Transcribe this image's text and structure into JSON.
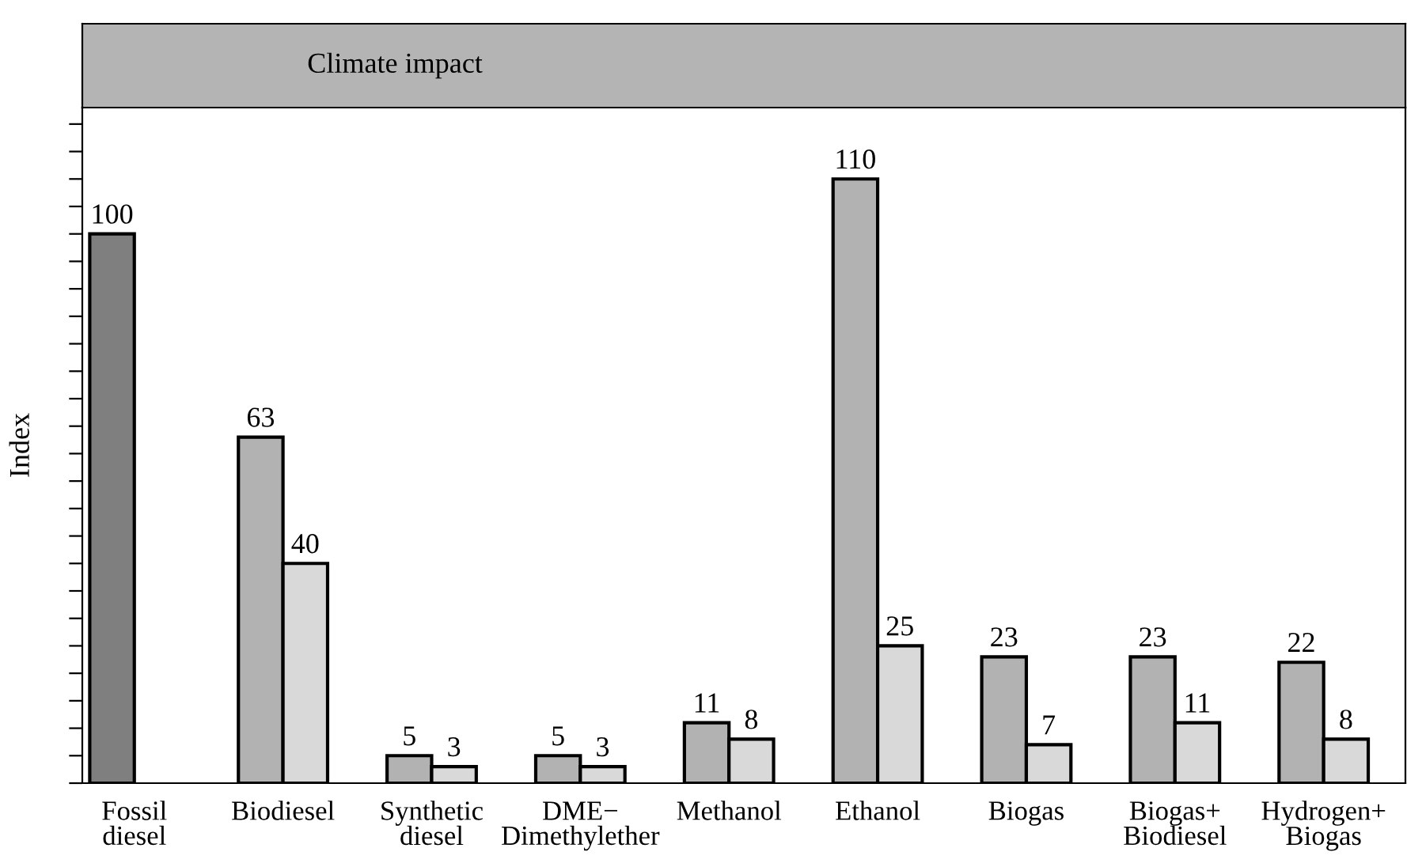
{
  "chart_data": {
    "type": "bar",
    "title": "Climate impact",
    "ylabel": "Index",
    "categories": [
      "Fossil\ndiesel",
      "Biodiesel",
      "Synthetic\ndiesel",
      "DME−\nDimethylether",
      "Methanol",
      "Ethanol",
      "Biogas",
      "Biogas+\nBiodiesel",
      "Hydrogen+\nBiogas"
    ],
    "series": [
      {
        "colors": [
          "#7f7f7f",
          "#b2b2b2",
          "#b2b2b2",
          "#b2b2b2",
          "#b2b2b2",
          "#b2b2b2",
          "#b2b2b2",
          "#b2b2b2",
          "#b2b2b2"
        ],
        "values": [
          100,
          63,
          5,
          5,
          11,
          110,
          23,
          23,
          22
        ]
      },
      {
        "color": "#d9d9d9",
        "values": [
          null,
          40,
          3,
          3,
          8,
          25,
          7,
          11,
          8
        ]
      }
    ],
    "ylim": [
      0,
      123
    ],
    "yticks": [
      {
        "value": 0,
        "label": null
      },
      {
        "value": 5,
        "label": null
      },
      {
        "value": 10,
        "label": null
      },
      {
        "value": 15,
        "label": null
      },
      {
        "value": 20,
        "label": null
      },
      {
        "value": 25,
        "label": null
      },
      {
        "value": 30,
        "label": null
      },
      {
        "value": 35,
        "label": null
      },
      {
        "value": 40,
        "label": null
      },
      {
        "value": 45,
        "label": null
      },
      {
        "value": 50,
        "label": null
      },
      {
        "value": 55,
        "label": null
      },
      {
        "value": 60,
        "label": null
      },
      {
        "value": 65,
        "label": null
      },
      {
        "value": 70,
        "label": null
      },
      {
        "value": 75,
        "label": null
      },
      {
        "value": 80,
        "label": null
      },
      {
        "value": 85,
        "label": null
      },
      {
        "value": 90,
        "label": null
      },
      {
        "value": 95,
        "label": null
      },
      {
        "value": 100,
        "label": null
      },
      {
        "value": 105,
        "label": null
      },
      {
        "value": 110,
        "label": null
      },
      {
        "value": 115,
        "label": null
      },
      {
        "value": 120,
        "label": null
      }
    ],
    "tick_labels": "x",
    "data_labels": true,
    "grid": false,
    "legend": false
  }
}
